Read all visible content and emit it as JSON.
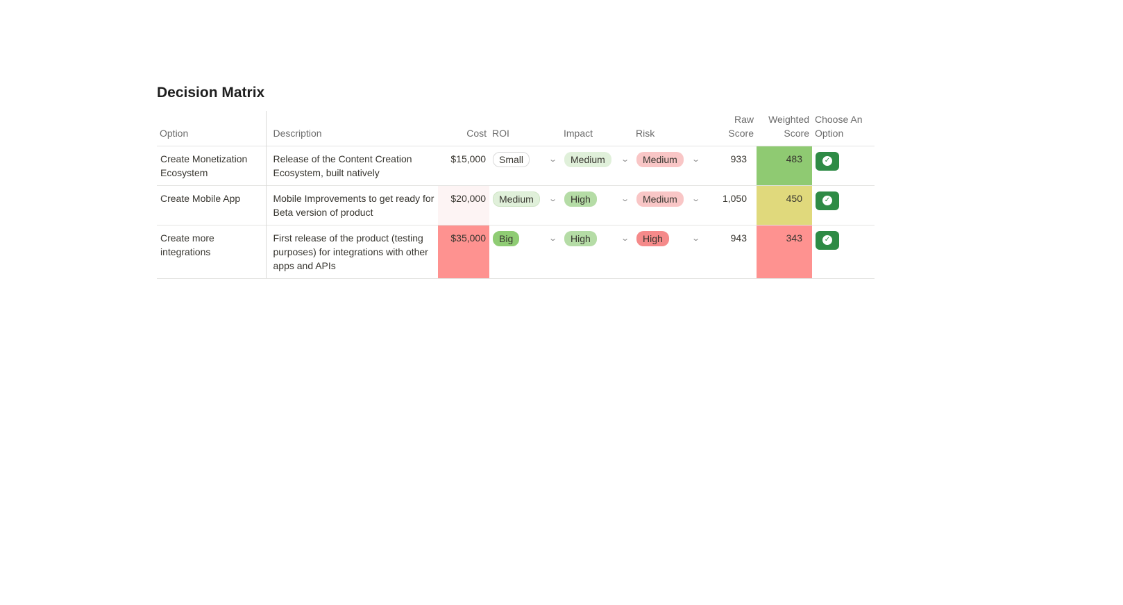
{
  "title": "Decision Matrix",
  "headers": {
    "option": "Option",
    "description": "Description",
    "cost": "Cost",
    "roi": "ROI",
    "impact": "Impact",
    "risk": "Risk",
    "raw_score": "Raw Score",
    "weighted_score": "Weighted Score",
    "choose": "Choose An Option"
  },
  "rows": [
    {
      "option": "Create Monetization Ecosystem",
      "description": "Release of the Content Creation Ecosystem, built natively",
      "cost": "$15,000",
      "cost_bg": "#ffffff",
      "roi": "Small",
      "roi_bg": "#ffffff",
      "roi_border": "#d9d9d9",
      "impact": "Medium",
      "impact_bg": "#e0f0da",
      "risk": "Medium",
      "risk_bg": "#f9c6c6",
      "raw_score": "933",
      "weighted_score": "483",
      "weighted_bg": "#8fca72",
      "chevron": "⌄",
      "check": "✓"
    },
    {
      "option": "Create Mobile App",
      "description": "Mobile Improvements to get ready for Beta version of product",
      "cost": "$20,000",
      "cost_bg": "#fdf4f4",
      "roi": "Medium",
      "roi_bg": "#e0f0da",
      "roi_border": "#cfe5c6",
      "impact": "High",
      "impact_bg": "#b5dca6",
      "risk": "Medium",
      "risk_bg": "#f9c6c6",
      "raw_score": "1,050",
      "weighted_score": "450",
      "weighted_bg": "#e0d97c",
      "chevron": "⌄",
      "check": "✓"
    },
    {
      "option": "Create more integrations",
      "description": "First release of the product (testing purposes) for integrations with other apps and APIs",
      "cost": "$35,000",
      "cost_bg": "#fe9290",
      "roi": "Big",
      "roi_bg": "#8fcc74",
      "roi_border": "#8fcc74",
      "impact": "High",
      "impact_bg": "#b5dca6",
      "risk": "High",
      "risk_bg": "#f58a8a",
      "raw_score": "943",
      "weighted_score": "343",
      "weighted_bg": "#fe9290",
      "chevron": "⌄",
      "check": "✓"
    }
  ]
}
